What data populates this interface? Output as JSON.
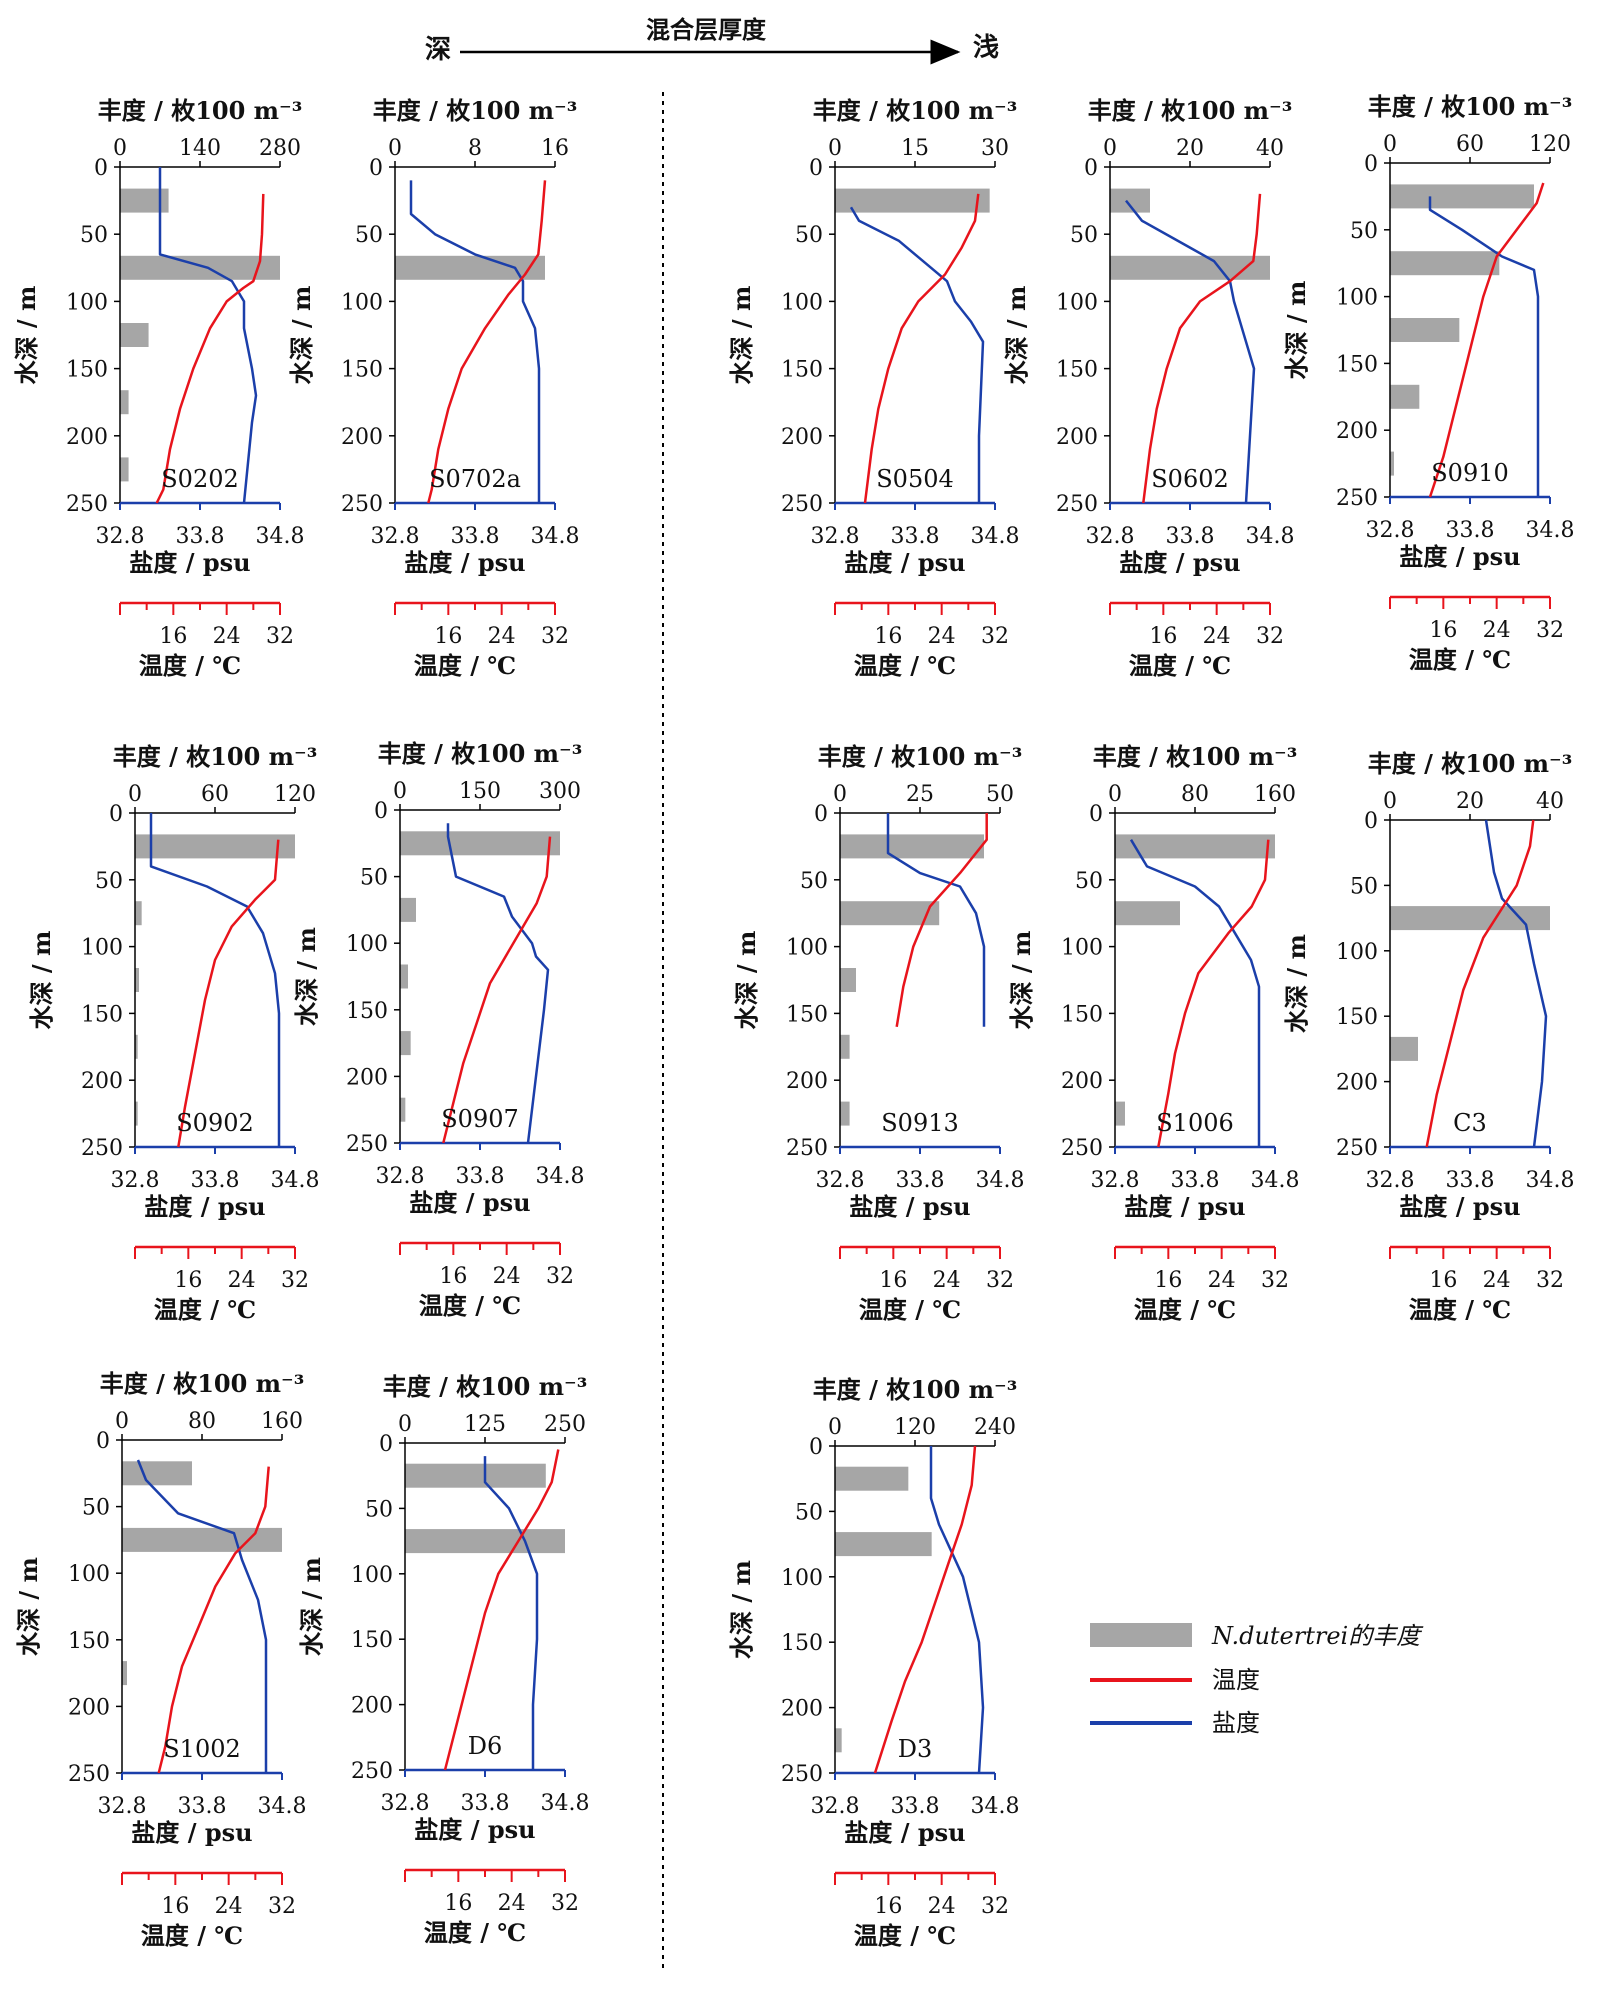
{
  "figure": {
    "arrow_label": "混合层厚度",
    "arrow_left": "深",
    "arrow_right": "浅"
  },
  "axis_labels": {
    "abundance": "丰度 / 枚100 m⁻³",
    "depth": "水深 / m",
    "salinity": "盐度 / psu",
    "temperature": "温度 / ℃",
    "depth_ticks": [
      "0",
      "50",
      "100",
      "150",
      "200",
      "250"
    ],
    "salinity_ticks": [
      "32.8",
      "33.8",
      "34.8"
    ],
    "temperature_ticks": [
      "16",
      "24",
      "32"
    ]
  },
  "legend": {
    "abundance": "N.dutertrei的丰度",
    "temperature": "温度",
    "salinity": "盐度"
  },
  "colors": {
    "temperature": "#e8141c",
    "salinity": "#1b3faa",
    "bar": "#a6a6a6",
    "axis": "#1b3faa"
  },
  "chart_data": [
    {
      "type": "line",
      "station": "S0202",
      "abundance_ticks": [
        "0",
        "140",
        "280"
      ],
      "abundance_max": 280,
      "bars": [
        [
          25,
          85
        ],
        [
          75,
          280
        ],
        [
          125,
          50
        ],
        [
          175,
          15
        ],
        [
          225,
          15
        ]
      ],
      "temperature": [
        [
          20,
          29.5
        ],
        [
          50,
          29.3
        ],
        [
          70,
          29
        ],
        [
          85,
          28
        ],
        [
          90,
          26.5
        ],
        [
          100,
          24
        ],
        [
          120,
          21.5
        ],
        [
          150,
          19
        ],
        [
          180,
          17
        ],
        [
          210,
          15.5
        ],
        [
          240,
          14.5
        ],
        [
          250,
          13.5
        ]
      ],
      "salinity": [
        [
          0,
          33.3
        ],
        [
          30,
          33.3
        ],
        [
          65,
          33.3
        ],
        [
          75,
          33.9
        ],
        [
          85,
          34.2
        ],
        [
          95,
          34.3
        ],
        [
          100,
          34.35
        ],
        [
          120,
          34.35
        ],
        [
          150,
          34.45
        ],
        [
          170,
          34.5
        ],
        [
          190,
          34.45
        ],
        [
          220,
          34.4
        ],
        [
          250,
          34.35
        ]
      ]
    },
    {
      "type": "line",
      "station": "S0702a",
      "abundance_ticks": [
        "0",
        "8",
        "16"
      ],
      "abundance_max": 16,
      "bars": [
        [
          75,
          15
        ]
      ],
      "temperature": [
        [
          10,
          30.5
        ],
        [
          40,
          30
        ],
        [
          65,
          29.5
        ],
        [
          80,
          27.5
        ],
        [
          95,
          25
        ],
        [
          120,
          21.5
        ],
        [
          150,
          18
        ],
        [
          180,
          16
        ],
        [
          210,
          14.5
        ],
        [
          240,
          13.5
        ],
        [
          250,
          13
        ]
      ],
      "salinity": [
        [
          10,
          33
        ],
        [
          35,
          33
        ],
        [
          50,
          33.3
        ],
        [
          65,
          33.8
        ],
        [
          75,
          34.3
        ],
        [
          85,
          34.4
        ],
        [
          100,
          34.4
        ],
        [
          120,
          34.55
        ],
        [
          150,
          34.6
        ],
        [
          200,
          34.6
        ],
        [
          250,
          34.6
        ]
      ]
    },
    {
      "type": "line",
      "station": "S0504",
      "abundance_ticks": [
        "0",
        "15",
        "30"
      ],
      "abundance_max": 30,
      "bars": [
        [
          25,
          29
        ]
      ],
      "temperature": [
        [
          20,
          29.5
        ],
        [
          40,
          29
        ],
        [
          60,
          27
        ],
        [
          80,
          24.5
        ],
        [
          100,
          20.5
        ],
        [
          120,
          18
        ],
        [
          150,
          16
        ],
        [
          180,
          14.5
        ],
        [
          210,
          13.5
        ],
        [
          250,
          12.5
        ]
      ],
      "salinity": [
        [
          30,
          33
        ],
        [
          40,
          33.1
        ],
        [
          55,
          33.6
        ],
        [
          70,
          33.9
        ],
        [
          85,
          34.2
        ],
        [
          100,
          34.3
        ],
        [
          115,
          34.5
        ],
        [
          130,
          34.65
        ],
        [
          200,
          34.6
        ],
        [
          250,
          34.6
        ]
      ]
    },
    {
      "type": "line",
      "station": "S0602",
      "abundance_ticks": [
        "0",
        "20",
        "40"
      ],
      "abundance_max": 40,
      "bars": [
        [
          25,
          10
        ],
        [
          75,
          40
        ]
      ],
      "temperature": [
        [
          20,
          30.5
        ],
        [
          50,
          30
        ],
        [
          70,
          29.5
        ],
        [
          85,
          26
        ],
        [
          100,
          21.5
        ],
        [
          120,
          18.5
        ],
        [
          150,
          16.5
        ],
        [
          180,
          15
        ],
        [
          210,
          14
        ],
        [
          250,
          13
        ]
      ],
      "salinity": [
        [
          25,
          33
        ],
        [
          40,
          33.2
        ],
        [
          60,
          33.8
        ],
        [
          70,
          34.1
        ],
        [
          85,
          34.3
        ],
        [
          100,
          34.35
        ],
        [
          120,
          34.45
        ],
        [
          150,
          34.6
        ],
        [
          200,
          34.55
        ],
        [
          250,
          34.5
        ]
      ]
    },
    {
      "type": "line",
      "station": "S0910",
      "abundance_ticks": [
        "0",
        "60",
        "120"
      ],
      "abundance_max": 120,
      "bars": [
        [
          25,
          108
        ],
        [
          75,
          82
        ],
        [
          125,
          52
        ],
        [
          175,
          22
        ],
        [
          225,
          3
        ]
      ],
      "temperature": [
        [
          15,
          31
        ],
        [
          30,
          30
        ],
        [
          50,
          27
        ],
        [
          70,
          24
        ],
        [
          100,
          22
        ],
        [
          130,
          20.5
        ],
        [
          160,
          19
        ],
        [
          190,
          17.5
        ],
        [
          220,
          16
        ],
        [
          250,
          14
        ]
      ],
      "salinity": [
        [
          25,
          33.3
        ],
        [
          35,
          33.3
        ],
        [
          50,
          33.7
        ],
        [
          70,
          34.2
        ],
        [
          80,
          34.6
        ],
        [
          100,
          34.65
        ],
        [
          150,
          34.65
        ],
        [
          200,
          34.65
        ],
        [
          250,
          34.65
        ]
      ]
    },
    {
      "type": "line",
      "station": "S0902",
      "abundance_ticks": [
        "0",
        "60",
        "120"
      ],
      "abundance_max": 120,
      "bars": [
        [
          25,
          120
        ],
        [
          75,
          5
        ],
        [
          125,
          3
        ],
        [
          175,
          2
        ],
        [
          225,
          2
        ]
      ],
      "temperature": [
        [
          20,
          29.5
        ],
        [
          50,
          29
        ],
        [
          65,
          26
        ],
        [
          85,
          22.5
        ],
        [
          110,
          20
        ],
        [
          140,
          18.5
        ],
        [
          180,
          17
        ],
        [
          220,
          15.5
        ],
        [
          250,
          14.5
        ]
      ],
      "salinity": [
        [
          0,
          33
        ],
        [
          40,
          33
        ],
        [
          55,
          33.7
        ],
        [
          70,
          34.2
        ],
        [
          90,
          34.4
        ],
        [
          120,
          34.55
        ],
        [
          150,
          34.6
        ],
        [
          250,
          34.6
        ]
      ]
    },
    {
      "type": "line",
      "station": "S0907",
      "abundance_ticks": [
        "0",
        "150",
        "300"
      ],
      "abundance_max": 300,
      "bars": [
        [
          25,
          300
        ],
        [
          75,
          30
        ],
        [
          125,
          15
        ],
        [
          175,
          20
        ],
        [
          225,
          10
        ]
      ],
      "temperature": [
        [
          20,
          30.5
        ],
        [
          50,
          30
        ],
        [
          70,
          28.5
        ],
        [
          100,
          25
        ],
        [
          130,
          21.5
        ],
        [
          160,
          19.5
        ],
        [
          190,
          17.5
        ],
        [
          220,
          16
        ],
        [
          250,
          14.5
        ]
      ],
      "salinity": [
        [
          10,
          33.4
        ],
        [
          20,
          33.4
        ],
        [
          50,
          33.5
        ],
        [
          65,
          34.1
        ],
        [
          80,
          34.2
        ],
        [
          100,
          34.45
        ],
        [
          110,
          34.5
        ],
        [
          120,
          34.65
        ],
        [
          150,
          34.6
        ],
        [
          200,
          34.5
        ],
        [
          250,
          34.4
        ]
      ]
    },
    {
      "type": "line",
      "station": "S0913",
      "abundance_ticks": [
        "0",
        "25",
        "50"
      ],
      "abundance_max": 50,
      "bars": [
        [
          25,
          45
        ],
        [
          75,
          31
        ],
        [
          125,
          5
        ],
        [
          175,
          3
        ],
        [
          225,
          3
        ]
      ],
      "temperature": [
        [
          0,
          30
        ],
        [
          20,
          30
        ],
        [
          45,
          26
        ],
        [
          70,
          21.5
        ],
        [
          100,
          19
        ],
        [
          130,
          17.5
        ],
        [
          160,
          16.5
        ]
      ],
      "salinity": [
        [
          0,
          33.4
        ],
        [
          30,
          33.4
        ],
        [
          45,
          33.8
        ],
        [
          55,
          34.3
        ],
        [
          75,
          34.5
        ],
        [
          100,
          34.6
        ],
        [
          130,
          34.6
        ],
        [
          160,
          34.6
        ]
      ]
    },
    {
      "type": "line",
      "station": "S1006",
      "abundance_ticks": [
        "0",
        "80",
        "160"
      ],
      "abundance_max": 160,
      "bars": [
        [
          25,
          160
        ],
        [
          75,
          65
        ],
        [
          225,
          10
        ]
      ],
      "temperature": [
        [
          20,
          31
        ],
        [
          50,
          30.5
        ],
        [
          70,
          28.5
        ],
        [
          90,
          25
        ],
        [
          120,
          20.5
        ],
        [
          150,
          18.5
        ],
        [
          180,
          17
        ],
        [
          210,
          16
        ],
        [
          250,
          14.5
        ]
      ],
      "salinity": [
        [
          20,
          33
        ],
        [
          40,
          33.2
        ],
        [
          55,
          33.8
        ],
        [
          70,
          34.1
        ],
        [
          90,
          34.3
        ],
        [
          110,
          34.5
        ],
        [
          130,
          34.6
        ],
        [
          250,
          34.6
        ]
      ]
    },
    {
      "type": "line",
      "station": "C3",
      "abundance_ticks": [
        "0",
        "20",
        "40"
      ],
      "abundance_max": 40,
      "bars": [
        [
          75,
          40
        ],
        [
          175,
          7
        ]
      ],
      "temperature": [
        [
          0,
          29.5
        ],
        [
          20,
          29
        ],
        [
          50,
          27
        ],
        [
          90,
          22
        ],
        [
          130,
          19
        ],
        [
          170,
          17
        ],
        [
          210,
          15
        ],
        [
          250,
          13.5
        ]
      ],
      "salinity": [
        [
          0,
          34
        ],
        [
          40,
          34.1
        ],
        [
          60,
          34.2
        ],
        [
          80,
          34.5
        ],
        [
          110,
          34.6
        ],
        [
          150,
          34.75
        ],
        [
          200,
          34.7
        ],
        [
          250,
          34.6
        ]
      ]
    },
    {
      "type": "line",
      "station": "S1002",
      "abundance_ticks": [
        "0",
        "80",
        "160"
      ],
      "abundance_max": 160,
      "bars": [
        [
          25,
          70
        ],
        [
          75,
          160
        ],
        [
          175,
          5
        ]
      ],
      "temperature": [
        [
          20,
          30
        ],
        [
          50,
          29.5
        ],
        [
          70,
          28
        ],
        [
          85,
          25
        ],
        [
          110,
          22
        ],
        [
          140,
          19.5
        ],
        [
          170,
          17
        ],
        [
          200,
          15.5
        ],
        [
          230,
          14.5
        ],
        [
          250,
          13.5
        ]
      ],
      "salinity": [
        [
          15,
          33
        ],
        [
          30,
          33.1
        ],
        [
          55,
          33.5
        ],
        [
          70,
          34.2
        ],
        [
          90,
          34.3
        ],
        [
          120,
          34.5
        ],
        [
          150,
          34.6
        ],
        [
          250,
          34.6
        ]
      ]
    },
    {
      "type": "line",
      "station": "D6",
      "abundance_ticks": [
        "0",
        "125",
        "250"
      ],
      "abundance_max": 250,
      "bars": [
        [
          25,
          220
        ],
        [
          75,
          250
        ]
      ],
      "temperature": [
        [
          5,
          31
        ],
        [
          30,
          30
        ],
        [
          50,
          28
        ],
        [
          75,
          25
        ],
        [
          100,
          22
        ],
        [
          130,
          20
        ],
        [
          160,
          18.5
        ],
        [
          190,
          17
        ],
        [
          220,
          15.5
        ],
        [
          250,
          14
        ]
      ],
      "salinity": [
        [
          10,
          33.8
        ],
        [
          30,
          33.8
        ],
        [
          50,
          34.1
        ],
        [
          75,
          34.3
        ],
        [
          100,
          34.45
        ],
        [
          150,
          34.45
        ],
        [
          200,
          34.4
        ],
        [
          250,
          34.4
        ]
      ]
    },
    {
      "type": "line",
      "station": "D3",
      "abundance_ticks": [
        "0",
        "120",
        "240"
      ],
      "abundance_max": 240,
      "bars": [
        [
          25,
          110
        ],
        [
          75,
          145
        ],
        [
          225,
          10
        ]
      ],
      "temperature": [
        [
          0,
          29
        ],
        [
          30,
          28.5
        ],
        [
          60,
          27
        ],
        [
          90,
          25
        ],
        [
          120,
          23
        ],
        [
          150,
          21
        ],
        [
          180,
          18.5
        ],
        [
          210,
          16.5
        ],
        [
          250,
          14
        ]
      ],
      "salinity": [
        [
          0,
          34
        ],
        [
          40,
          34
        ],
        [
          60,
          34.1
        ],
        [
          100,
          34.4
        ],
        [
          150,
          34.6
        ],
        [
          200,
          34.65
        ],
        [
          250,
          34.6
        ]
      ]
    }
  ]
}
